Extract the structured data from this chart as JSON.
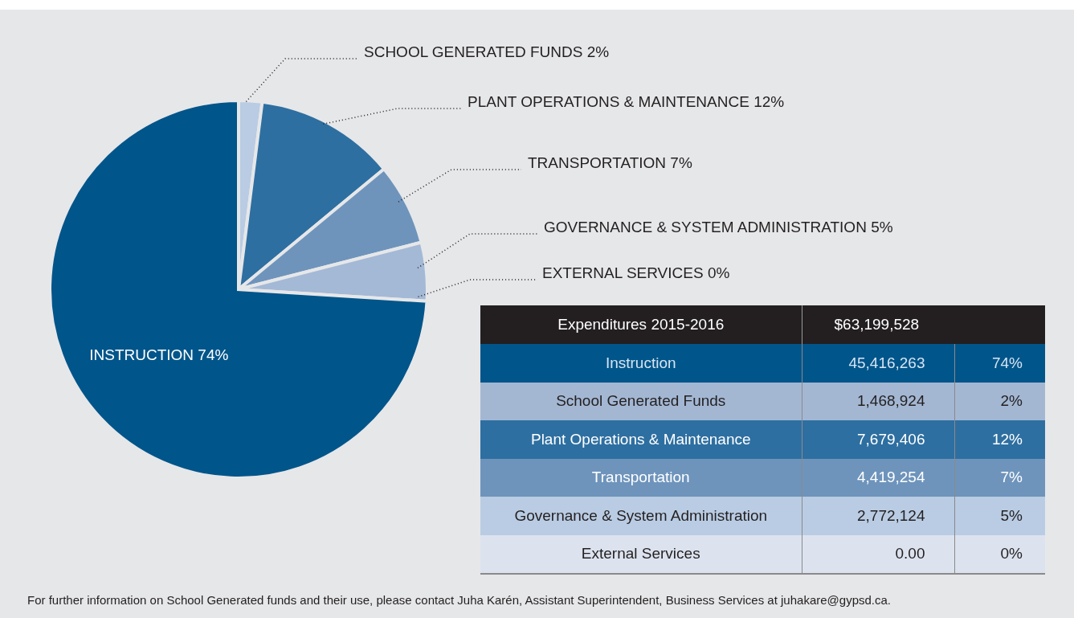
{
  "chart_data": [
    {
      "type": "pie",
      "categories": [
        "SCHOOL GENERATED FUNDS",
        "PLANT OPERATIONS & MAINTENANCE",
        "TRANSPORTATION",
        "GOVERNANCE & SYSTEM ADMINISTRATION",
        "EXTERNAL SERVICES",
        "INSTRUCTION"
      ],
      "values": [
        2,
        12,
        7,
        5,
        0,
        74
      ],
      "value_labels": [
        "2%",
        "12%",
        "7%",
        "5%",
        "0%",
        "74%"
      ],
      "colors": [
        "#b9cce3",
        "#2e6fa1",
        "#6e94bc",
        "#a3b9d6",
        "#4a8fc0",
        "#00558a"
      ],
      "annotations": [
        "For further information on School Generated funds and their use, please contact Juha Karén, Assistant Superintendent, Business Services at juhakare@gypsd.ca."
      ]
    },
    {
      "type": "other",
      "title": "Expenditures 2015-2016",
      "subtitle": "$63,199,528",
      "categories": [
        "Instruction",
        "School Generated Funds",
        "Plant Operations & Maintenance",
        "Transportation",
        "Governance & System Administration",
        "External Services"
      ],
      "colors": [
        "#00558a",
        "#a3b7d3",
        "#2e6fa1",
        "#6e94bc",
        "#b9cce3",
        "#dce3ef"
      ],
      "series": [
        {
          "colors": [
            "#00558a",
            "#a3b7d3",
            "#2e6fa1",
            "#6e94bc",
            "#b9cce3",
            "#dce3ef"
          ],
          "values": [
            45416263,
            1468924,
            7679406,
            4419254,
            2772124,
            0
          ],
          "value_labels": [
            "45,416,263",
            "1,468,924",
            "7,679,406",
            "4,419,254",
            "2,772,124",
            "0.00"
          ]
        },
        {
          "colors": [
            "#00558a",
            "#a3b7d3",
            "#2e6fa1",
            "#6e94bc",
            "#b9cce3",
            "#dce3ef"
          ],
          "values": [
            74,
            2,
            12,
            7,
            5,
            0
          ],
          "value_labels": [
            "74%",
            "2%",
            "12%",
            "7%",
            "5%",
            "0%"
          ]
        }
      ]
    }
  ]
}
